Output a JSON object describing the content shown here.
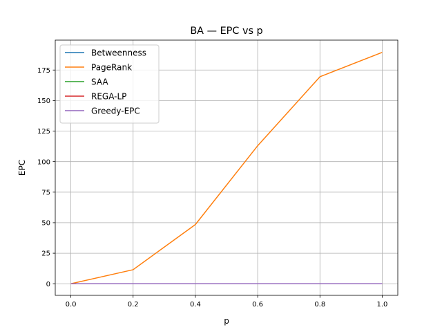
{
  "chart_data": {
    "type": "line",
    "title": "BA — EPC vs p",
    "xlabel": "p",
    "ylabel": "EPC",
    "x": [
      0.0,
      0.2,
      0.4,
      0.6,
      0.8,
      1.0
    ],
    "xlim": [
      -0.05,
      1.05
    ],
    "ylim": [
      -9.5,
      199.5
    ],
    "xticks": [
      0.0,
      0.2,
      0.4,
      0.6,
      0.8,
      1.0
    ],
    "xtick_labels": [
      "0.0",
      "0.2",
      "0.4",
      "0.6",
      "0.8",
      "1.0"
    ],
    "yticks": [
      0,
      25,
      50,
      75,
      100,
      125,
      150,
      175
    ],
    "ytick_labels": [
      "0",
      "25",
      "50",
      "75",
      "100",
      "125",
      "150",
      "175"
    ],
    "grid": true,
    "legend_position": "upper-left",
    "series": [
      {
        "name": "Betweenness",
        "color": "#1f77b4",
        "values": [
          0,
          0,
          0,
          0,
          0,
          0
        ]
      },
      {
        "name": "PageRank",
        "color": "#ff7f0e",
        "values": [
          0,
          11.5,
          48.5,
          113,
          169.5,
          189.5
        ]
      },
      {
        "name": "SAA",
        "color": "#2ca02c",
        "values": [
          0,
          0,
          0,
          0,
          0,
          0
        ]
      },
      {
        "name": "REGA-LP",
        "color": "#d62728",
        "values": [
          0,
          0,
          0,
          0,
          0,
          0
        ]
      },
      {
        "name": "Greedy-EPC",
        "color": "#9467bd",
        "values": [
          0,
          0,
          0,
          0,
          0,
          0
        ]
      }
    ]
  }
}
